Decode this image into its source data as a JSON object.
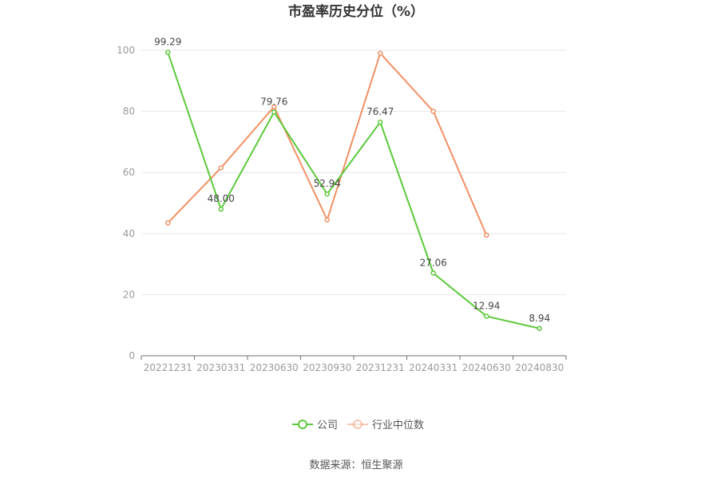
{
  "colors": {
    "company": "#5cc93a",
    "industry": "#f29063"
  },
  "source": "数据来源：恒生聚源",
  "chart_data": {
    "type": "line",
    "title": "市盈率历史分位（%）",
    "xlabel": "",
    "ylabel": "",
    "ylim": [
      0,
      100
    ],
    "yticks": [
      "0",
      "20",
      "40",
      "60",
      "80",
      "100"
    ],
    "categories": [
      "20221231",
      "20230331",
      "20230630",
      "20230930",
      "20231231",
      "20240331",
      "20240630",
      "20240830"
    ],
    "series": [
      {
        "name": "公司",
        "values": [
          99.29,
          48.0,
          79.76,
          52.94,
          76.47,
          27.06,
          12.94,
          8.94
        ],
        "labels": [
          "99.29",
          "48.00",
          "79.76",
          "52.94",
          "76.47",
          "27.06",
          "12.94",
          "8.94"
        ]
      },
      {
        "name": "行业中位数",
        "values": [
          43.5,
          61.5,
          81.5,
          44.5,
          99.0,
          80.0,
          39.5,
          null
        ]
      }
    ],
    "grid": true,
    "legend": "bottom-center"
  }
}
